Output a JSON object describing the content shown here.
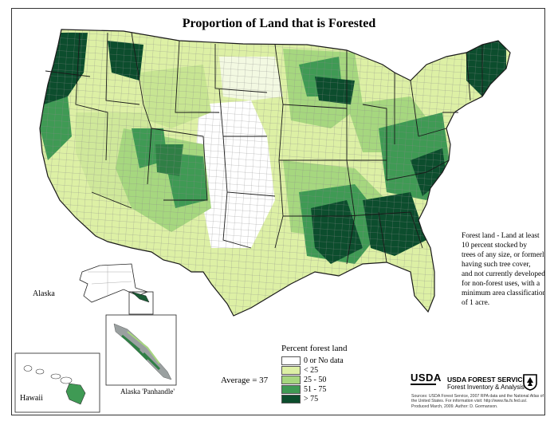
{
  "title": "Proportion of Land that is Forested",
  "description_lines": [
    "Forest land - Land at least",
    "10 percent stocked by",
    "trees of any size, or formerly",
    "having such tree cover,",
    "and not currently developed",
    "for non-forest uses, with a",
    "minimum area classification",
    " of 1 acre."
  ],
  "inset_labels": {
    "alaska": "Alaska",
    "hawaii": "Hawaii",
    "panhandle": "Alaska 'Panhandle'"
  },
  "average": {
    "label": "Average = 37",
    "value": 37
  },
  "legend": {
    "title": "Percent forest land",
    "classes": [
      {
        "label": "0 or No data",
        "color": "#ffffff"
      },
      {
        "label": "< 25",
        "color": "#ddf0a5"
      },
      {
        "label": "25 - 50",
        "color": "#a6d77f"
      },
      {
        "label": "51 - 75",
        "color": "#3f9a54"
      },
      {
        "label": "> 75",
        "color": "#0c4d2d"
      }
    ]
  },
  "agency": {
    "logo_text": "USDA",
    "name": "USDA FOREST SERVICE",
    "unit": "Forest Inventory & Analysis"
  },
  "sources": "Sources: USDA Forest Service, 2007 RPA data and the National Atlas of the United States. For information visit: http://www.fia.fs.fed.us/. Produced March, 2009. Author: D. Gormanson.",
  "colors": {
    "border": "#555555",
    "county_line": "#8a8a8a",
    "state_line": "#1a1a1a"
  }
}
